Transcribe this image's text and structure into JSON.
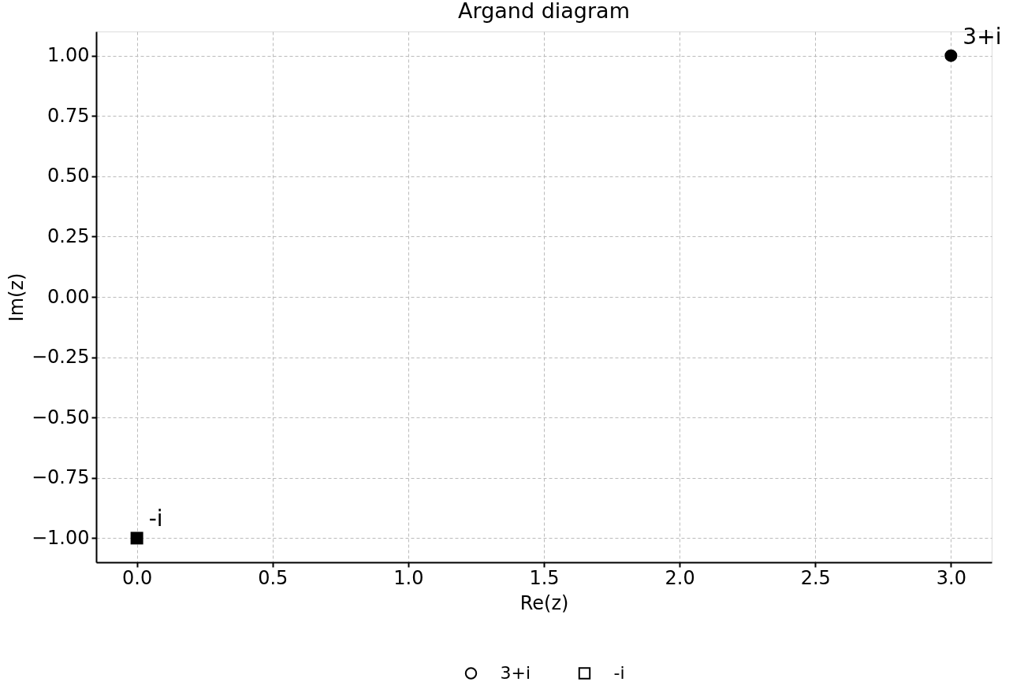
{
  "chart_data": {
    "type": "scatter",
    "title": "Argand diagram",
    "xlabel": "Re(z)",
    "ylabel": "Im(z)",
    "series": [
      {
        "name": "3+i",
        "color": "#000000",
        "marker": "circle",
        "x": [
          3
        ],
        "values": [
          1
        ]
      },
      {
        "name": "-i",
        "color": "#000000",
        "marker": "square",
        "x": [
          0
        ],
        "values": [
          -1
        ]
      }
    ],
    "xlim": [
      -0.15,
      3.15
    ],
    "ylim": [
      -1.1,
      1.1
    ],
    "xticks": [
      {
        "value": 0,
        "label": "0.0"
      },
      0.5,
      {
        "value": 1,
        "label": "1.0"
      },
      1.5,
      {
        "value": 2,
        "label": "2.0"
      },
      2.5,
      {
        "value": 3,
        "label": "3.0"
      }
    ],
    "yticks": [
      {
        "value": -1,
        "label": "−1.00"
      },
      {
        "value": -0.75,
        "label": "−0.75"
      },
      {
        "value": -0.5,
        "label": "−0.50"
      },
      {
        "value": -0.25,
        "label": "−0.25"
      },
      {
        "value": 0,
        "label": "0.00"
      },
      0.25,
      {
        "value": 0.5,
        "label": "0.50"
      },
      0.75,
      {
        "value": 1,
        "label": "1.00"
      }
    ],
    "annotations": [
      {
        "text": "3+i",
        "x": 3,
        "y": 1
      },
      {
        "text": "-i",
        "x": 0,
        "y": -1
      }
    ],
    "grid": true,
    "legend": "bottom"
  }
}
